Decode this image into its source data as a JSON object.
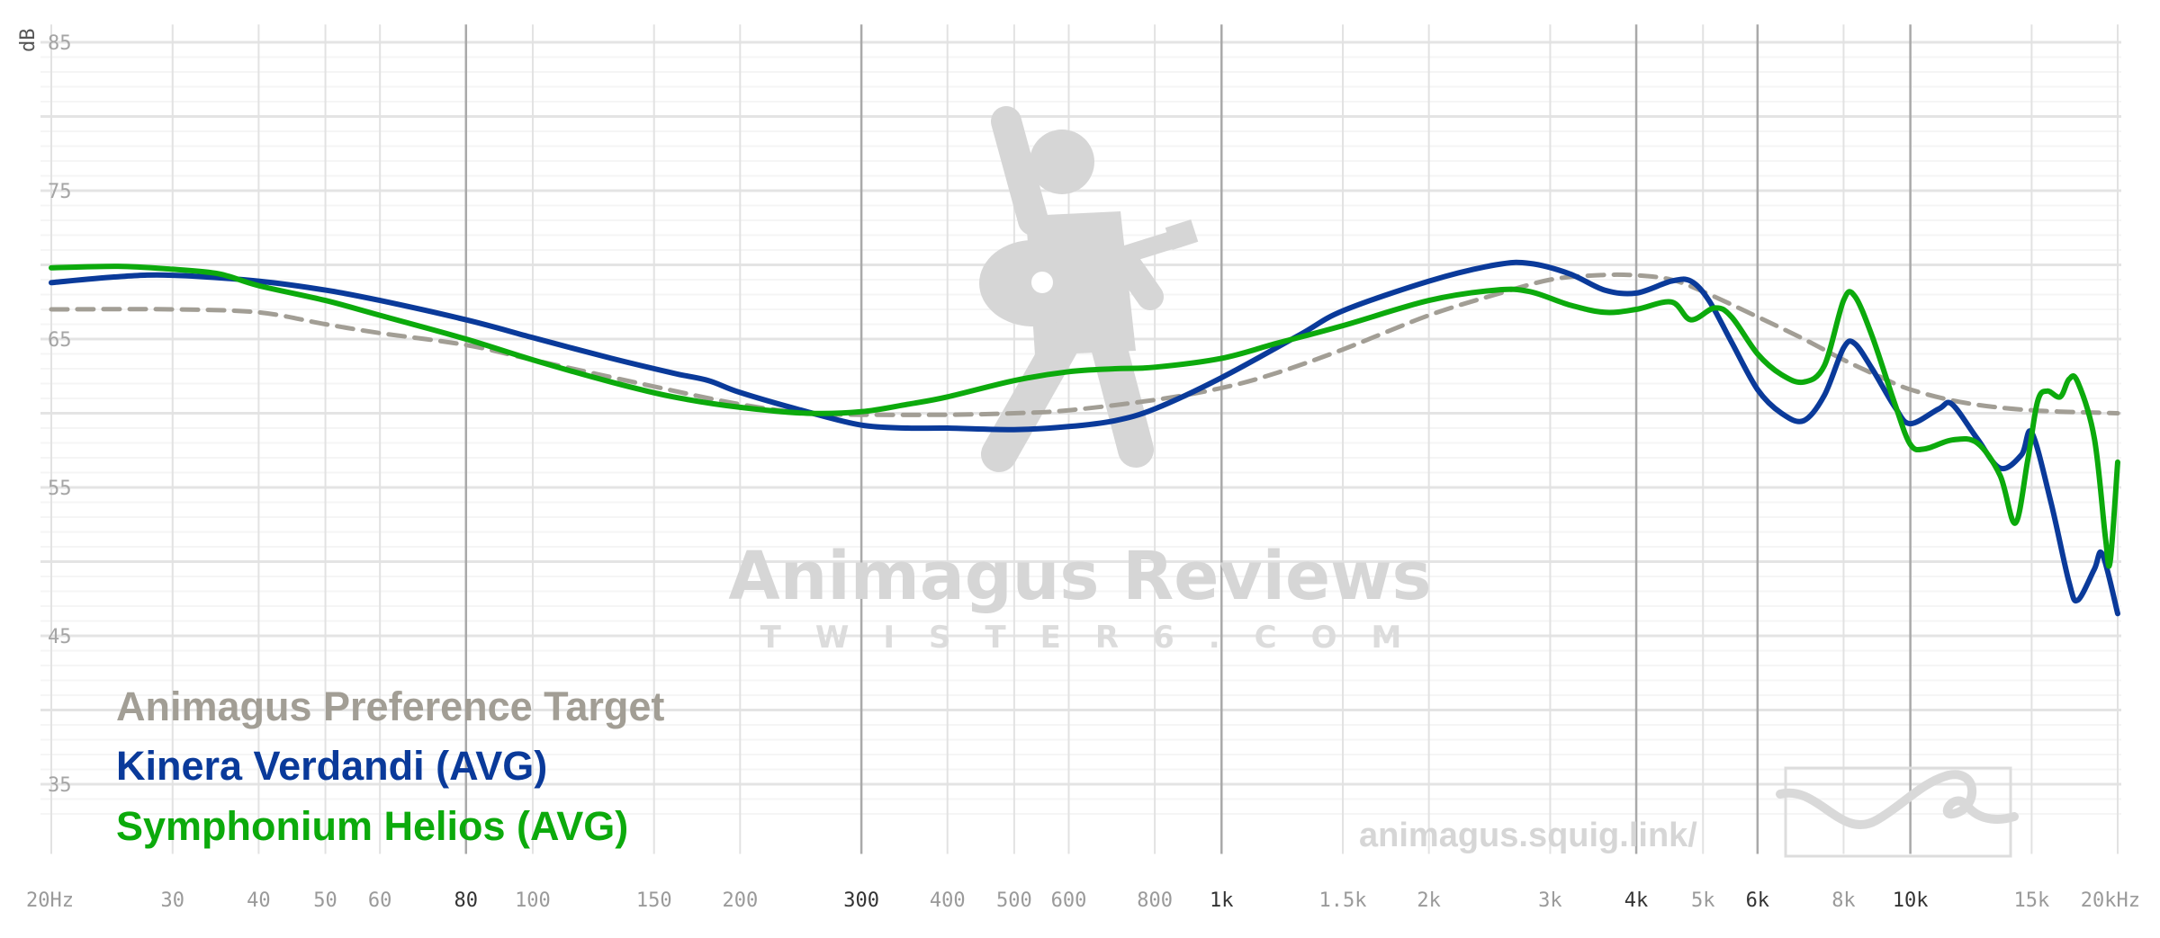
{
  "chart_data": {
    "type": "line",
    "title": "",
    "xlabel": "",
    "ylabel": "dB",
    "x_scale": "log",
    "xlim": [
      20,
      20000
    ],
    "ylim": [
      30,
      86
    ],
    "grid": true,
    "legend_position": "bottom-left",
    "x_ticks": [
      {
        "value": 20,
        "label": "20Hz",
        "major": false
      },
      {
        "value": 30,
        "label": "30",
        "major": false
      },
      {
        "value": 40,
        "label": "40",
        "major": false
      },
      {
        "value": 50,
        "label": "50",
        "major": false
      },
      {
        "value": 60,
        "label": "60",
        "major": false
      },
      {
        "value": 80,
        "label": "80",
        "major": true
      },
      {
        "value": 100,
        "label": "100",
        "major": false
      },
      {
        "value": 150,
        "label": "150",
        "major": false
      },
      {
        "value": 200,
        "label": "200",
        "major": false
      },
      {
        "value": 300,
        "label": "300",
        "major": true
      },
      {
        "value": 400,
        "label": "400",
        "major": false
      },
      {
        "value": 500,
        "label": "500",
        "major": false
      },
      {
        "value": 600,
        "label": "600",
        "major": false
      },
      {
        "value": 800,
        "label": "800",
        "major": false
      },
      {
        "value": 1000,
        "label": "1k",
        "major": true
      },
      {
        "value": 1500,
        "label": "1.5k",
        "major": false
      },
      {
        "value": 2000,
        "label": "2k",
        "major": false
      },
      {
        "value": 3000,
        "label": "3k",
        "major": false
      },
      {
        "value": 4000,
        "label": "4k",
        "major": true
      },
      {
        "value": 5000,
        "label": "5k",
        "major": false
      },
      {
        "value": 6000,
        "label": "6k",
        "major": true
      },
      {
        "value": 8000,
        "label": "8k",
        "major": false
      },
      {
        "value": 10000,
        "label": "10k",
        "major": true
      },
      {
        "value": 15000,
        "label": "15k",
        "major": false
      },
      {
        "value": 20000,
        "label": "20kHz",
        "major": false
      }
    ],
    "y_ticks": [
      {
        "value": 85,
        "label": "85"
      },
      {
        "value": 75,
        "label": "75"
      },
      {
        "value": 65,
        "label": "65"
      },
      {
        "value": 55,
        "label": "55"
      },
      {
        "value": 45,
        "label": "45"
      },
      {
        "value": 35,
        "label": "35"
      }
    ],
    "y_minor_grid": [
      35,
      40,
      45,
      50,
      55,
      60,
      65,
      70,
      75,
      80,
      85
    ],
    "series": [
      {
        "name": "Animagus Preference Target",
        "color": "#a29e95",
        "dashed": true,
        "points": [
          [
            20,
            67.0
          ],
          [
            30,
            67.0
          ],
          [
            40,
            66.8
          ],
          [
            50,
            66.0
          ],
          [
            60,
            65.4
          ],
          [
            80,
            64.6
          ],
          [
            100,
            63.6
          ],
          [
            150,
            61.8
          ],
          [
            200,
            60.6
          ],
          [
            250,
            60.0
          ],
          [
            300,
            59.9
          ],
          [
            400,
            59.9
          ],
          [
            500,
            60.0
          ],
          [
            600,
            60.2
          ],
          [
            800,
            60.9
          ],
          [
            1000,
            61.7
          ],
          [
            1200,
            62.7
          ],
          [
            1500,
            64.3
          ],
          [
            2000,
            66.6
          ],
          [
            2500,
            68.0
          ],
          [
            3000,
            69.0
          ],
          [
            3500,
            69.3
          ],
          [
            4000,
            69.3
          ],
          [
            4500,
            69.0
          ],
          [
            5000,
            68.2
          ],
          [
            6000,
            66.5
          ],
          [
            7000,
            65.0
          ],
          [
            8000,
            63.6
          ],
          [
            9000,
            62.5
          ],
          [
            10000,
            61.6
          ],
          [
            12000,
            60.7
          ],
          [
            15000,
            60.2
          ],
          [
            20000,
            60.0
          ]
        ]
      },
      {
        "name": "Kinera Verdandi (AVG)",
        "color": "#0a3a9a",
        "dashed": false,
        "points": [
          [
            20,
            68.8
          ],
          [
            25,
            69.2
          ],
          [
            30,
            69.3
          ],
          [
            40,
            68.9
          ],
          [
            50,
            68.3
          ],
          [
            60,
            67.6
          ],
          [
            80,
            66.3
          ],
          [
            100,
            65.1
          ],
          [
            130,
            63.7
          ],
          [
            160,
            62.7
          ],
          [
            180,
            62.2
          ],
          [
            200,
            61.4
          ],
          [
            250,
            60.1
          ],
          [
            300,
            59.2
          ],
          [
            350,
            59.0
          ],
          [
            400,
            59.0
          ],
          [
            500,
            58.9
          ],
          [
            600,
            59.1
          ],
          [
            700,
            59.5
          ],
          [
            800,
            60.3
          ],
          [
            1000,
            62.4
          ],
          [
            1300,
            65.3
          ],
          [
            1500,
            66.9
          ],
          [
            2000,
            68.9
          ],
          [
            2500,
            70.0
          ],
          [
            2800,
            70.1
          ],
          [
            3200,
            69.4
          ],
          [
            3600,
            68.3
          ],
          [
            4000,
            68.1
          ],
          [
            4500,
            68.9
          ],
          [
            4800,
            68.9
          ],
          [
            5100,
            67.6
          ],
          [
            5500,
            64.8
          ],
          [
            6000,
            61.6
          ],
          [
            6500,
            60.0
          ],
          [
            7000,
            59.5
          ],
          [
            7500,
            61.2
          ],
          [
            8000,
            64.4
          ],
          [
            8300,
            64.7
          ],
          [
            8800,
            63.0
          ],
          [
            9500,
            60.4
          ],
          [
            10000,
            59.3
          ],
          [
            11000,
            60.3
          ],
          [
            11500,
            60.6
          ],
          [
            12500,
            58.3
          ],
          [
            13500,
            56.3
          ],
          [
            14500,
            57.2
          ],
          [
            15000,
            58.7
          ],
          [
            16000,
            54.0
          ],
          [
            17000,
            48.6
          ],
          [
            17500,
            47.4
          ],
          [
            18500,
            49.5
          ],
          [
            19000,
            50.5
          ],
          [
            20000,
            46.5
          ]
        ]
      },
      {
        "name": "Symphonium Helios (AVG)",
        "color": "#0caa0c",
        "dashed": false,
        "points": [
          [
            20,
            69.8
          ],
          [
            25,
            69.9
          ],
          [
            30,
            69.7
          ],
          [
            35,
            69.4
          ],
          [
            40,
            68.6
          ],
          [
            50,
            67.6
          ],
          [
            60,
            66.6
          ],
          [
            80,
            65.0
          ],
          [
            100,
            63.6
          ],
          [
            130,
            62.1
          ],
          [
            160,
            61.1
          ],
          [
            200,
            60.4
          ],
          [
            250,
            60.0
          ],
          [
            300,
            60.1
          ],
          [
            350,
            60.6
          ],
          [
            400,
            61.1
          ],
          [
            500,
            62.2
          ],
          [
            600,
            62.8
          ],
          [
            700,
            63.0
          ],
          [
            800,
            63.1
          ],
          [
            1000,
            63.7
          ],
          [
            1200,
            64.7
          ],
          [
            1500,
            65.9
          ],
          [
            2000,
            67.6
          ],
          [
            2500,
            68.3
          ],
          [
            2800,
            68.2
          ],
          [
            3200,
            67.3
          ],
          [
            3600,
            66.8
          ],
          [
            4000,
            67.0
          ],
          [
            4500,
            67.5
          ],
          [
            4800,
            66.3
          ],
          [
            5200,
            67.1
          ],
          [
            5500,
            66.5
          ],
          [
            6000,
            64.0
          ],
          [
            6500,
            62.6
          ],
          [
            7000,
            62.1
          ],
          [
            7500,
            63.2
          ],
          [
            8000,
            67.6
          ],
          [
            8300,
            67.9
          ],
          [
            8800,
            65.2
          ],
          [
            9500,
            60.6
          ],
          [
            10000,
            57.9
          ],
          [
            10500,
            57.6
          ],
          [
            11500,
            58.2
          ],
          [
            12500,
            58.0
          ],
          [
            13500,
            55.8
          ],
          [
            14200,
            52.6
          ],
          [
            14800,
            56.8
          ],
          [
            15300,
            60.8
          ],
          [
            15800,
            61.5
          ],
          [
            16500,
            61.1
          ],
          [
            17000,
            62.3
          ],
          [
            17500,
            62.1
          ],
          [
            18500,
            58.3
          ],
          [
            19200,
            51.6
          ],
          [
            19500,
            50.0
          ],
          [
            20000,
            56.7
          ]
        ]
      }
    ]
  },
  "watermark": {
    "title": "Animagus Reviews",
    "subtitle": "TWISTER6.COM",
    "url": "animagus.squig.link/"
  }
}
